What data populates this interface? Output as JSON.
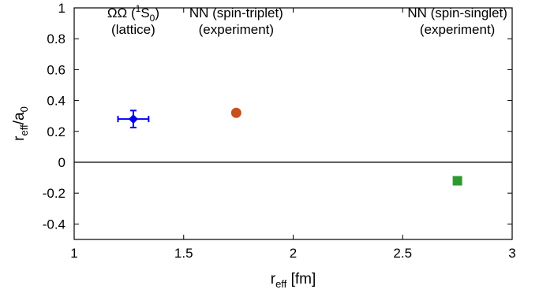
{
  "chart_data": {
    "type": "scatter",
    "xlim": [
      1,
      3
    ],
    "ylim": [
      -0.5,
      1
    ],
    "x_ticks": [
      1,
      1.5,
      2,
      2.5,
      3
    ],
    "x_tick_labels": [
      "1",
      "1.5",
      "2",
      "2.5",
      "3"
    ],
    "y_ticks": [
      -0.4,
      -0.2,
      0,
      0.2,
      0.4,
      0.6,
      0.8,
      1
    ],
    "y_tick_labels": [
      "-0.4",
      "-0.2",
      "0",
      "0.2",
      "0.4",
      "0.6",
      "0.8",
      "1"
    ],
    "xlabel": {
      "base": "r",
      "sub": "eff",
      "rest": " [fm]"
    },
    "ylabel": {
      "base": "r",
      "sub1": "eff",
      "mid": "/a",
      "sub2": "0"
    },
    "zero_line": 0,
    "grid": false,
    "points": [
      {
        "name": "ΩΩ (lattice)",
        "marker": "diamond",
        "color": "#0000ee",
        "x": 1.27,
        "y": 0.28,
        "xerr": 0.07,
        "yerr": 0.055
      },
      {
        "name": "NN spin-triplet (experiment)",
        "marker": "circle",
        "color": "#c8501e",
        "x": 1.74,
        "y": 0.32
      },
      {
        "name": "NN spin-singlet (experiment)",
        "marker": "square",
        "color": "#2e9a2e",
        "x": 2.75,
        "y": -0.12
      }
    ],
    "annotations": [
      {
        "line1_prefix": "ΩΩ (",
        "line1_sup": "1",
        "line1_base": "S",
        "line1_sub": "0",
        "line1_suffix": ")",
        "line2": "(lattice)",
        "x": 1.27,
        "y": 0.95
      },
      {
        "line1": "NN (spin-triplet)",
        "line2": "(experiment)",
        "x": 1.74,
        "y": 0.95
      },
      {
        "line1": "NN (spin-singlet)",
        "line2": "(experiment)",
        "x": 2.75,
        "y": 0.95
      }
    ]
  }
}
